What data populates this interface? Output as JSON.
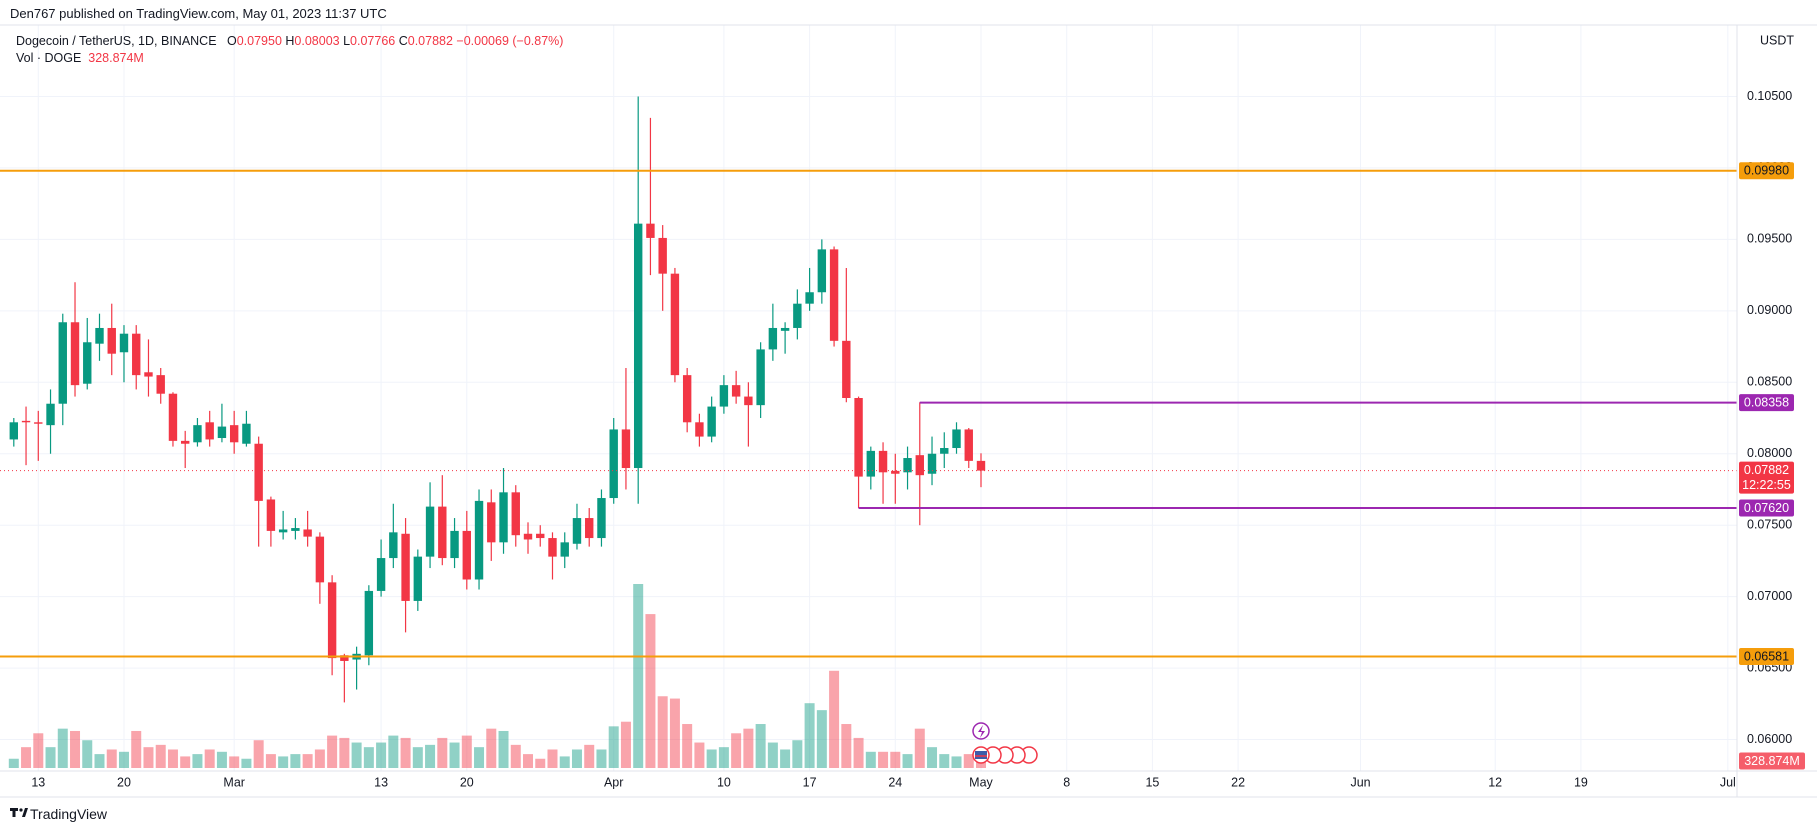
{
  "header": {
    "published": "Den767 published on TradingView.com, May 01, 2023 11:37 UTC"
  },
  "chart_data": {
    "type": "candlestick",
    "title": "Dogecoin / TetherUS, 1D, BINANCE",
    "legend": {
      "o_label": "O",
      "open": "0.07950",
      "h_label": "H",
      "high": "0.08003",
      "l_label": "L",
      "low": "0.07766",
      "c_label": "C",
      "close": "0.07882",
      "change": "−0.00069 (−0.87%)"
    },
    "currency": "USDT",
    "open": [
      0.081,
      0.0823,
      0.0822,
      0.082,
      0.0835,
      0.0892,
      0.0849,
      0.0877,
      0.0888,
      0.0871,
      0.0884,
      0.0857,
      0.0855,
      0.0842,
      0.0809,
      0.0808,
      0.0822,
      0.0811,
      0.082,
      0.0807,
      0.0807,
      0.0768,
      0.0745,
      0.0746,
      0.0747,
      0.0742,
      0.071,
      0.0659,
      0.0656,
      0.0659,
      0.0704,
      0.0727,
      0.0744,
      0.0697,
      0.0728,
      0.0763,
      0.0727,
      0.0746,
      0.0712,
      0.0766,
      0.0738,
      0.0773,
      0.0744,
      0.0744,
      0.0741,
      0.0728,
      0.0737,
      0.0755,
      0.0741,
      0.0769,
      0.0817,
      0.079,
      0.0961,
      0.0951,
      0.0926,
      0.0855,
      0.0822,
      0.0812,
      0.0833,
      0.0848,
      0.084,
      0.0834,
      0.0873,
      0.0886,
      0.0888,
      0.0905,
      0.0913,
      0.0943,
      0.0879,
      0.0839,
      0.0784,
      0.0802,
      0.0788,
      0.0787,
      0.0799,
      0.0786,
      0.08,
      0.0804,
      0.0817,
      0.0795
    ],
    "high": [
      0.0825,
      0.0833,
      0.083,
      0.0845,
      0.0898,
      0.092,
      0.0895,
      0.0898,
      0.0905,
      0.089,
      0.089,
      0.088,
      0.086,
      0.0843,
      0.0816,
      0.0825,
      0.083,
      0.0835,
      0.083,
      0.083,
      0.0812,
      0.077,
      0.076,
      0.0755,
      0.076,
      0.0745,
      0.0715,
      0.066,
      0.0665,
      0.0708,
      0.074,
      0.0765,
      0.0755,
      0.0733,
      0.078,
      0.0785,
      0.0755,
      0.076,
      0.0775,
      0.0775,
      0.079,
      0.0778,
      0.0752,
      0.075,
      0.0745,
      0.0745,
      0.0765,
      0.0762,
      0.0775,
      0.0825,
      0.086,
      0.105,
      0.1035,
      0.096,
      0.093,
      0.086,
      0.0828,
      0.084,
      0.0855,
      0.0858,
      0.085,
      0.0878,
      0.0905,
      0.0892,
      0.0915,
      0.093,
      0.095,
      0.0945,
      0.093,
      0.084,
      0.0805,
      0.0808,
      0.08,
      0.0805,
      0.0836,
      0.0812,
      0.0815,
      0.0822,
      0.0818,
      0.08003
    ],
    "low": [
      0.0805,
      0.0792,
      0.0795,
      0.08,
      0.082,
      0.084,
      0.0845,
      0.0865,
      0.0855,
      0.085,
      0.0845,
      0.084,
      0.0835,
      0.0805,
      0.079,
      0.0805,
      0.0805,
      0.0808,
      0.08,
      0.0805,
      0.0735,
      0.0735,
      0.074,
      0.074,
      0.0735,
      0.0695,
      0.0645,
      0.0626,
      0.0635,
      0.0652,
      0.07,
      0.072,
      0.0675,
      0.069,
      0.072,
      0.0722,
      0.072,
      0.0705,
      0.0705,
      0.0725,
      0.073,
      0.0735,
      0.073,
      0.0735,
      0.0712,
      0.072,
      0.0733,
      0.0735,
      0.0735,
      0.0765,
      0.0775,
      0.0765,
      0.0925,
      0.09,
      0.085,
      0.0815,
      0.0805,
      0.0808,
      0.0828,
      0.0835,
      0.0805,
      0.0825,
      0.0865,
      0.087,
      0.088,
      0.09,
      0.0905,
      0.0875,
      0.0836,
      0.0762,
      0.0775,
      0.0765,
      0.0765,
      0.0775,
      0.075,
      0.0778,
      0.079,
      0.08,
      0.079,
      0.07766
    ],
    "close": [
      0.0822,
      0.0822,
      0.0821,
      0.0835,
      0.0892,
      0.0848,
      0.0878,
      0.0888,
      0.087,
      0.0884,
      0.0855,
      0.0854,
      0.0842,
      0.0809,
      0.0807,
      0.082,
      0.081,
      0.0819,
      0.0808,
      0.0821,
      0.0767,
      0.0746,
      0.0747,
      0.0748,
      0.0742,
      0.071,
      0.0657,
      0.0655,
      0.066,
      0.0704,
      0.0727,
      0.0745,
      0.0697,
      0.0728,
      0.0763,
      0.0727,
      0.0746,
      0.0712,
      0.0767,
      0.0738,
      0.0773,
      0.0743,
      0.074,
      0.0741,
      0.0728,
      0.0738,
      0.0755,
      0.0741,
      0.0769,
      0.0817,
      0.079,
      0.0961,
      0.0951,
      0.0926,
      0.0855,
      0.0822,
      0.0812,
      0.0833,
      0.0848,
      0.084,
      0.0834,
      0.0873,
      0.0888,
      0.0888,
      0.0905,
      0.0913,
      0.0943,
      0.0879,
      0.0839,
      0.0784,
      0.0802,
      0.0787,
      0.0786,
      0.0797,
      0.0785,
      0.08,
      0.0804,
      0.0817,
      0.0795,
      0.07882
    ],
    "last_price_label": "0.07882",
    "countdown": "12:22:55",
    "volume": {
      "name": "Vol · DOGE",
      "last_label": "328.874M",
      "values": [
        320000000,
        720000000,
        1200000000,
        720000000,
        1360000000,
        1280000000,
        960000000,
        480000000,
        640000000,
        560000000,
        1280000000,
        720000000,
        800000000,
        640000000,
        400000000,
        480000000,
        640000000,
        560000000,
        400000000,
        320000000,
        960000000,
        480000000,
        400000000,
        480000000,
        480000000,
        640000000,
        1120000000,
        1040000000,
        880000000,
        720000000,
        880000000,
        1120000000,
        1040000000,
        720000000,
        800000000,
        1040000000,
        880000000,
        1120000000,
        720000000,
        1360000000,
        1280000000,
        800000000,
        480000000,
        320000000,
        640000000,
        400000000,
        640000000,
        800000000,
        640000000,
        1440000000,
        1600000000,
        6360000000,
        5320000000,
        2480000000,
        2400000000,
        1520000000,
        880000000,
        640000000,
        720000000,
        1200000000,
        1360000000,
        1520000000,
        880000000,
        640000000,
        960000000,
        2240000000,
        2000000000,
        3360000000,
        1520000000,
        1040000000,
        560000000,
        560000000,
        560000000,
        480000000,
        1360000000,
        720000000,
        480000000,
        400000000,
        480000000,
        328874000
      ]
    },
    "levels": [
      {
        "value": 0.0998,
        "label": "0.09980",
        "color": "#f59d0b"
      },
      {
        "value": 0.06581,
        "label": "0.06581",
        "color": "#f59d0b"
      },
      {
        "value": 0.08358,
        "label": "0.08358",
        "color": "#9c27b0"
      },
      {
        "value": 0.0762,
        "label": "0.07620",
        "color": "#9c27b0"
      }
    ],
    "ylim": [
      0.0578,
      0.11
    ],
    "yticks": [
      {
        "value": 0.06,
        "label": "0.06000"
      },
      {
        "value": 0.065,
        "label": "0.06500"
      },
      {
        "value": 0.07,
        "label": "0.07000"
      },
      {
        "value": 0.075,
        "label": "0.07500"
      },
      {
        "value": 0.08,
        "label": "0.08000"
      },
      {
        "value": 0.085,
        "label": "0.08500"
      },
      {
        "value": 0.09,
        "label": "0.09000"
      },
      {
        "value": 0.095,
        "label": "0.09500"
      },
      {
        "value": 0.1,
        "label": "0.10000"
      },
      {
        "value": 0.105,
        "label": "0.10500"
      }
    ],
    "xticks": [
      {
        "value": 2,
        "label": "13"
      },
      {
        "value": 9,
        "label": "20"
      },
      {
        "value": 18,
        "label": "Mar"
      },
      {
        "value": 30,
        "label": "13"
      },
      {
        "value": 37,
        "label": "20"
      },
      {
        "value": 49,
        "label": "Apr"
      },
      {
        "value": 58,
        "label": "10"
      },
      {
        "value": 65,
        "label": "17"
      },
      {
        "value": 72,
        "label": "24"
      },
      {
        "value": 79,
        "label": "May"
      },
      {
        "value": 86,
        "label": "8"
      },
      {
        "value": 93,
        "label": "15"
      },
      {
        "value": 100,
        "label": "22"
      },
      {
        "value": 110,
        "label": "Jun"
      },
      {
        "value": 121,
        "label": "12"
      },
      {
        "value": 128,
        "label": "19"
      },
      {
        "value": 140,
        "label": "Jul"
      }
    ],
    "grid": true,
    "up_color": "#089981",
    "down_color": "#f23645"
  },
  "footer": {
    "brand": "TradingView"
  }
}
